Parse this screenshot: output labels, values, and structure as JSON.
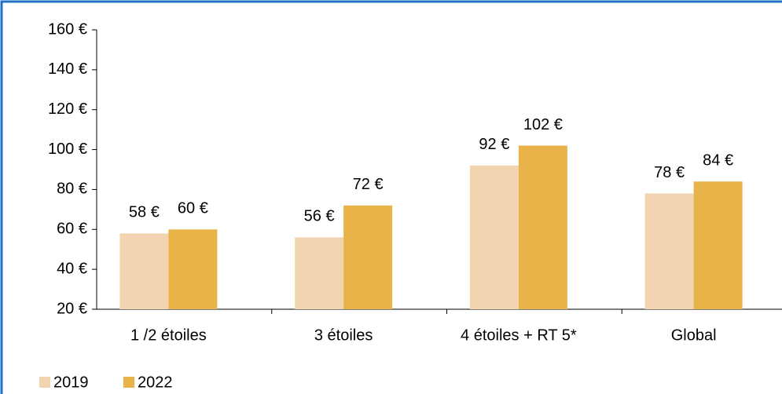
{
  "chart_data": {
    "type": "bar",
    "categories": [
      "1 /2 étoiles",
      "3 étoiles",
      "4 étoiles + RT 5*",
      "Global"
    ],
    "series": [
      {
        "name": "2019",
        "color": "#f2d5b0",
        "values": [
          58,
          56,
          92,
          78
        ],
        "value_labels": [
          "58 €",
          "56 €",
          "92 €",
          "78 €"
        ]
      },
      {
        "name": "2022",
        "color": "#e8b44a",
        "values": [
          60,
          72,
          102,
          84
        ],
        "value_labels": [
          "60 €",
          "72 €",
          "102 €",
          "84 €"
        ]
      }
    ],
    "ylim": [
      20,
      160
    ],
    "yticks": [
      {
        "value": 20,
        "label": "20 €"
      },
      {
        "value": 40,
        "label": "40 €"
      },
      {
        "value": 60,
        "label": "60 €"
      },
      {
        "value": 80,
        "label": "80 €"
      },
      {
        "value": 100,
        "label": "100 €"
      },
      {
        "value": 120,
        "label": "120 €"
      },
      {
        "value": 140,
        "label": "140 €"
      },
      {
        "value": 160,
        "label": "160 €"
      }
    ],
    "grid": false,
    "legend": "bottom-left"
  }
}
